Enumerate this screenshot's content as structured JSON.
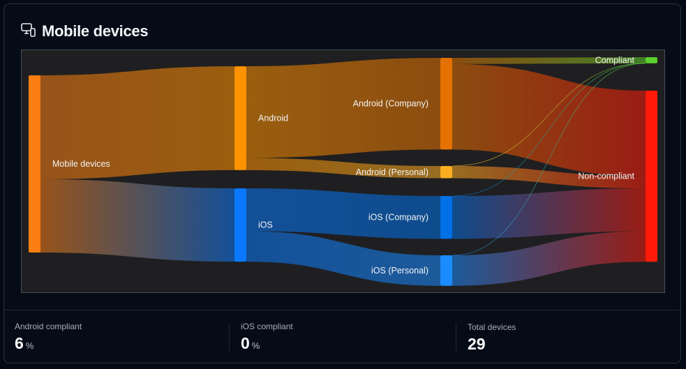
{
  "header": {
    "title": "Mobile devices",
    "icon": "devices-icon"
  },
  "chart_data": {
    "type": "sankey",
    "nodes": [
      {
        "id": "mobile",
        "label": "Mobile devices",
        "color": "#fb7e12"
      },
      {
        "id": "android",
        "label": "Android",
        "color": "#ff9200"
      },
      {
        "id": "ios",
        "label": "iOS",
        "color": "#0a78fa"
      },
      {
        "id": "android_company",
        "label": "Android (Company)",
        "color": "#e57200"
      },
      {
        "id": "android_personal",
        "label": "Android (Personal)",
        "color": "#fbad22"
      },
      {
        "id": "ios_company",
        "label": "iOS (Company)",
        "color": "#0070e6"
      },
      {
        "id": "ios_personal",
        "label": "iOS (Personal)",
        "color": "#1a8cff"
      },
      {
        "id": "compliant",
        "label": "Compliant",
        "color": "#5cd12c"
      },
      {
        "id": "noncompliant",
        "label": "Non-compliant",
        "color": "#ff1a0a"
      }
    ],
    "links": [
      {
        "source": "mobile",
        "target": "android",
        "value": 17
      },
      {
        "source": "mobile",
        "target": "ios",
        "value": 12
      },
      {
        "source": "android",
        "target": "android_company",
        "value": 15
      },
      {
        "source": "android",
        "target": "android_personal",
        "value": 2
      },
      {
        "source": "ios",
        "target": "ios_company",
        "value": 7
      },
      {
        "source": "ios",
        "target": "ios_personal",
        "value": 5
      },
      {
        "source": "android_company",
        "target": "compliant",
        "value": 1
      },
      {
        "source": "android_company",
        "target": "noncompliant",
        "value": 14
      },
      {
        "source": "android_personal",
        "target": "compliant",
        "value": 0
      },
      {
        "source": "android_personal",
        "target": "noncompliant",
        "value": 2
      },
      {
        "source": "ios_company",
        "target": "compliant",
        "value": 0
      },
      {
        "source": "ios_company",
        "target": "noncompliant",
        "value": 7
      },
      {
        "source": "ios_personal",
        "target": "compliant",
        "value": 0
      },
      {
        "source": "ios_personal",
        "target": "noncompliant",
        "value": 5
      }
    ]
  },
  "stats": [
    {
      "label": "Android compliant",
      "value": "6",
      "unit": "%"
    },
    {
      "label": "iOS compliant",
      "value": "0",
      "unit": "%"
    },
    {
      "label": "Total devices",
      "value": "29",
      "unit": ""
    }
  ]
}
